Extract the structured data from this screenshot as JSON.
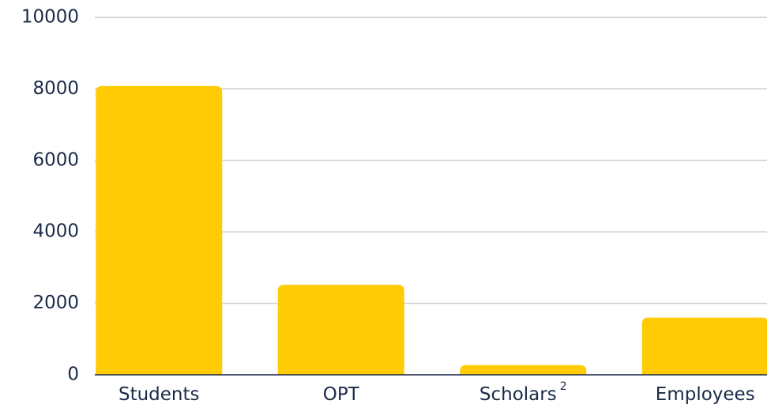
{
  "chart_data": {
    "type": "bar",
    "categories": [
      "Students",
      "OPT",
      "Scholars",
      "Employees"
    ],
    "superscripts": [
      null,
      null,
      "2",
      null
    ],
    "values": [
      8080,
      2520,
      270,
      1600
    ],
    "color": "#ffcb05",
    "ylim": [
      0,
      10000
    ],
    "yticks": [
      0,
      2000,
      4000,
      6000,
      8000,
      10000
    ],
    "grid": true
  }
}
